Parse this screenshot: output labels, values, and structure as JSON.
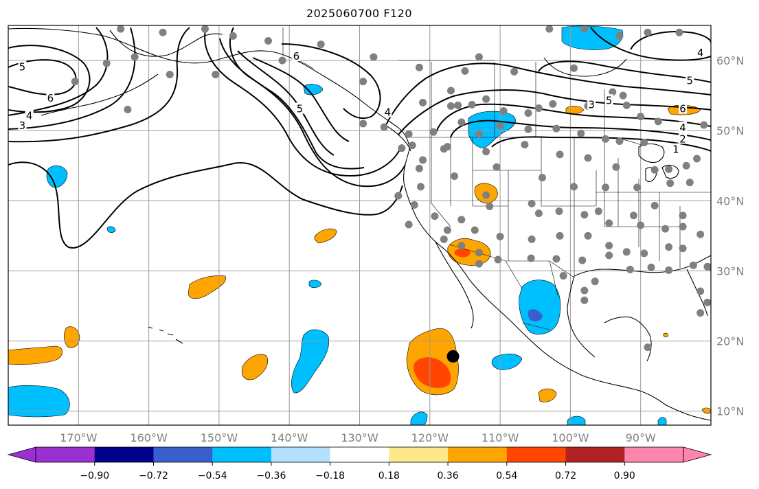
{
  "title": "2025060700 F120",
  "map": {
    "projection": "PlateCarree",
    "lon_range": [
      -180,
      -80
    ],
    "lat_range": [
      8,
      65
    ],
    "lon_ticks": [
      {
        "value": -170,
        "label": "170°W"
      },
      {
        "value": -160,
        "label": "160°W"
      },
      {
        "value": -150,
        "label": "150°W"
      },
      {
        "value": -140,
        "label": "140°W"
      },
      {
        "value": -130,
        "label": "130°W"
      },
      {
        "value": -120,
        "label": "120°W"
      },
      {
        "value": -110,
        "label": "110°W"
      },
      {
        "value": -100,
        "label": "100°W"
      },
      {
        "value": -90,
        "label": "90°W"
      }
    ],
    "lat_ticks": [
      {
        "value": 10,
        "label": "10°N"
      },
      {
        "value": 20,
        "label": "20°N"
      },
      {
        "value": 30,
        "label": "30°N"
      },
      {
        "value": 40,
        "label": "40°N"
      },
      {
        "value": 50,
        "label": "50°N"
      },
      {
        "value": 60,
        "label": "60°N"
      }
    ],
    "gridlines": true,
    "contour_labels": [
      {
        "text": "5",
        "lon": -178,
        "lat": 59
      },
      {
        "text": "6",
        "lon": -174,
        "lat": 54.5
      },
      {
        "text": "4",
        "lon": -177,
        "lat": 52
      },
      {
        "text": "3",
        "lon": -178,
        "lat": 50.6
      },
      {
        "text": "6",
        "lon": -139,
        "lat": 60.5
      },
      {
        "text": "5",
        "lon": -138.5,
        "lat": 53
      },
      {
        "text": "4",
        "lon": -126,
        "lat": 52.5
      },
      {
        "text": "3",
        "lon": -97,
        "lat": 53.6
      },
      {
        "text": "5",
        "lon": -94.5,
        "lat": 54.2
      },
      {
        "text": "6",
        "lon": -84,
        "lat": 53
      },
      {
        "text": "5",
        "lon": -83,
        "lat": 57
      },
      {
        "text": "4",
        "lon": -81.5,
        "lat": 61
      },
      {
        "text": "4",
        "lon": -84,
        "lat": 50.3
      },
      {
        "text": "2",
        "lon": -84,
        "lat": 48.7
      },
      {
        "text": "1",
        "lon": -85,
        "lat": 47.2
      }
    ],
    "stations": [
      [
        -164,
        64.5
      ],
      [
        -158,
        64
      ],
      [
        -152,
        64.5
      ],
      [
        -148,
        63.5
      ],
      [
        -143,
        62.8
      ],
      [
        -135.5,
        62.3
      ],
      [
        -128,
        60.5
      ],
      [
        -121.5,
        59
      ],
      [
        -113,
        60.5
      ],
      [
        -103,
        64.5
      ],
      [
        -98,
        64.5
      ],
      [
        -93,
        63.5
      ],
      [
        -89,
        64
      ],
      [
        -84.5,
        64
      ],
      [
        -162,
        60.5
      ],
      [
        -166,
        59.6
      ],
      [
        -170.5,
        57
      ],
      [
        -157,
        58
      ],
      [
        -163,
        53
      ],
      [
        -150.5,
        58
      ],
      [
        -141,
        60
      ],
      [
        -129.5,
        57
      ],
      [
        -115,
        58.5
      ],
      [
        -108,
        58.4
      ],
      [
        -99.5,
        58.9
      ],
      [
        -117,
        55.7
      ],
      [
        -94,
        55.5
      ],
      [
        -92.5,
        55
      ],
      [
        -121,
        54
      ],
      [
        -114,
        53.7
      ],
      [
        -116,
        53.6
      ],
      [
        -117,
        53.5
      ],
      [
        -112,
        54.5
      ],
      [
        -109.5,
        52.8
      ],
      [
        -106,
        52.5
      ],
      [
        -104.5,
        53.2
      ],
      [
        -102.5,
        53.8
      ],
      [
        -97.5,
        53.5
      ],
      [
        -92,
        53.6
      ],
      [
        -90,
        52
      ],
      [
        -87.5,
        51.3
      ],
      [
        -81,
        50.8
      ],
      [
        -126.5,
        50.5
      ],
      [
        -129.5,
        51
      ],
      [
        -123,
        49.5
      ],
      [
        -119.5,
        49.8
      ],
      [
        -122.5,
        47.9
      ],
      [
        -118,
        47.4
      ],
      [
        -115.5,
        51.2
      ],
      [
        -113,
        49.5
      ],
      [
        -110,
        50.7
      ],
      [
        -106,
        50.2
      ],
      [
        -102,
        50.3
      ],
      [
        -98.5,
        49.6
      ],
      [
        -95,
        48.8
      ],
      [
        -93,
        48.5
      ],
      [
        -89.5,
        48.3
      ],
      [
        -124,
        47.5
      ],
      [
        -121,
        45.8
      ],
      [
        -117.5,
        47.7
      ],
      [
        -112,
        47
      ],
      [
        -106.5,
        48
      ],
      [
        -101.5,
        46.6
      ],
      [
        -97.5,
        46.1
      ],
      [
        -93.5,
        44.8
      ],
      [
        -88,
        44.4
      ],
      [
        -86,
        44.5
      ],
      [
        -83.5,
        45
      ],
      [
        -82,
        46
      ],
      [
        -121.5,
        44.6
      ],
      [
        -116.5,
        43.5
      ],
      [
        -110.5,
        44.8
      ],
      [
        -104,
        43.3
      ],
      [
        -99.5,
        42
      ],
      [
        -95,
        41.9
      ],
      [
        -90.5,
        41.9
      ],
      [
        -85.8,
        42.5
      ],
      [
        -83,
        42.6
      ],
      [
        -79.5,
        40.3
      ],
      [
        -121.3,
        42
      ],
      [
        -124.5,
        40.7
      ],
      [
        -112,
        40.8
      ],
      [
        -105.5,
        39.6
      ],
      [
        -101.6,
        38.5
      ],
      [
        -96,
        38.5
      ],
      [
        -91,
        37.9
      ],
      [
        -88,
        39.3
      ],
      [
        -84,
        37.9
      ],
      [
        -79.5,
        40
      ],
      [
        -122.2,
        39.4
      ],
      [
        -119.3,
        37.8
      ],
      [
        -115.5,
        37.3
      ],
      [
        -111.5,
        39.2
      ],
      [
        -104.5,
        38.2
      ],
      [
        -98,
        38
      ],
      [
        -94.5,
        36.8
      ],
      [
        -90,
        36.5
      ],
      [
        -86.5,
        36
      ],
      [
        -84,
        36.3
      ],
      [
        -81.5,
        35.2
      ],
      [
        -123,
        36.6
      ],
      [
        -117.5,
        35.8
      ],
      [
        -113.6,
        35.8
      ],
      [
        -110,
        34.9
      ],
      [
        -105.5,
        34.5
      ],
      [
        -101.5,
        35
      ],
      [
        -97.5,
        35
      ],
      [
        -94.5,
        33.6
      ],
      [
        -92,
        32.7
      ],
      [
        -89.5,
        32.5
      ],
      [
        -86,
        33.4
      ],
      [
        -84,
        33.2
      ],
      [
        -80,
        30.5
      ],
      [
        -118,
        34.5
      ],
      [
        -115.5,
        33.6
      ],
      [
        -113,
        32.6
      ],
      [
        -110.3,
        31.6
      ],
      [
        -105.6,
        31.8
      ],
      [
        -102,
        31.7
      ],
      [
        -98.3,
        31.5
      ],
      [
        -94.5,
        32.2
      ],
      [
        -91.5,
        30.2
      ],
      [
        -88.5,
        30.5
      ],
      [
        -86,
        30.1
      ],
      [
        -82.5,
        30.8
      ],
      [
        -80.5,
        30.6
      ],
      [
        -101,
        29.3
      ],
      [
        -98,
        27.2
      ],
      [
        -96.5,
        28.5
      ],
      [
        -98,
        25.8
      ],
      [
        -81.5,
        27.1
      ],
      [
        -80.5,
        25.5
      ],
      [
        -81.5,
        24
      ],
      [
        -89,
        19.1
      ],
      [
        -113,
        31
      ]
    ],
    "marker": {
      "lon": -116.7,
      "lat": 17.8,
      "shape": "black-dot"
    }
  },
  "colorbar": {
    "colors": [
      "#9b30d0",
      "#00008b",
      "#3a5fcd",
      "#00bfff",
      "#b2e2ff",
      "#ffffff",
      "#fee98a",
      "#ffa500",
      "#ff4500",
      "#b22222",
      "#ff85ad"
    ],
    "ticks": [
      {
        "value": -0.9,
        "label": "−0.90"
      },
      {
        "value": -0.72,
        "label": "−0.72"
      },
      {
        "value": -0.54,
        "label": "−0.54"
      },
      {
        "value": -0.36,
        "label": "−0.36"
      },
      {
        "value": -0.18,
        "label": "−0.18"
      },
      {
        "value": 0.18,
        "label": "0.18"
      },
      {
        "value": 0.36,
        "label": "0.36"
      },
      {
        "value": 0.54,
        "label": "0.54"
      },
      {
        "value": 0.72,
        "label": "0.72"
      },
      {
        "value": 0.9,
        "label": "0.90"
      }
    ],
    "extend": "both"
  }
}
